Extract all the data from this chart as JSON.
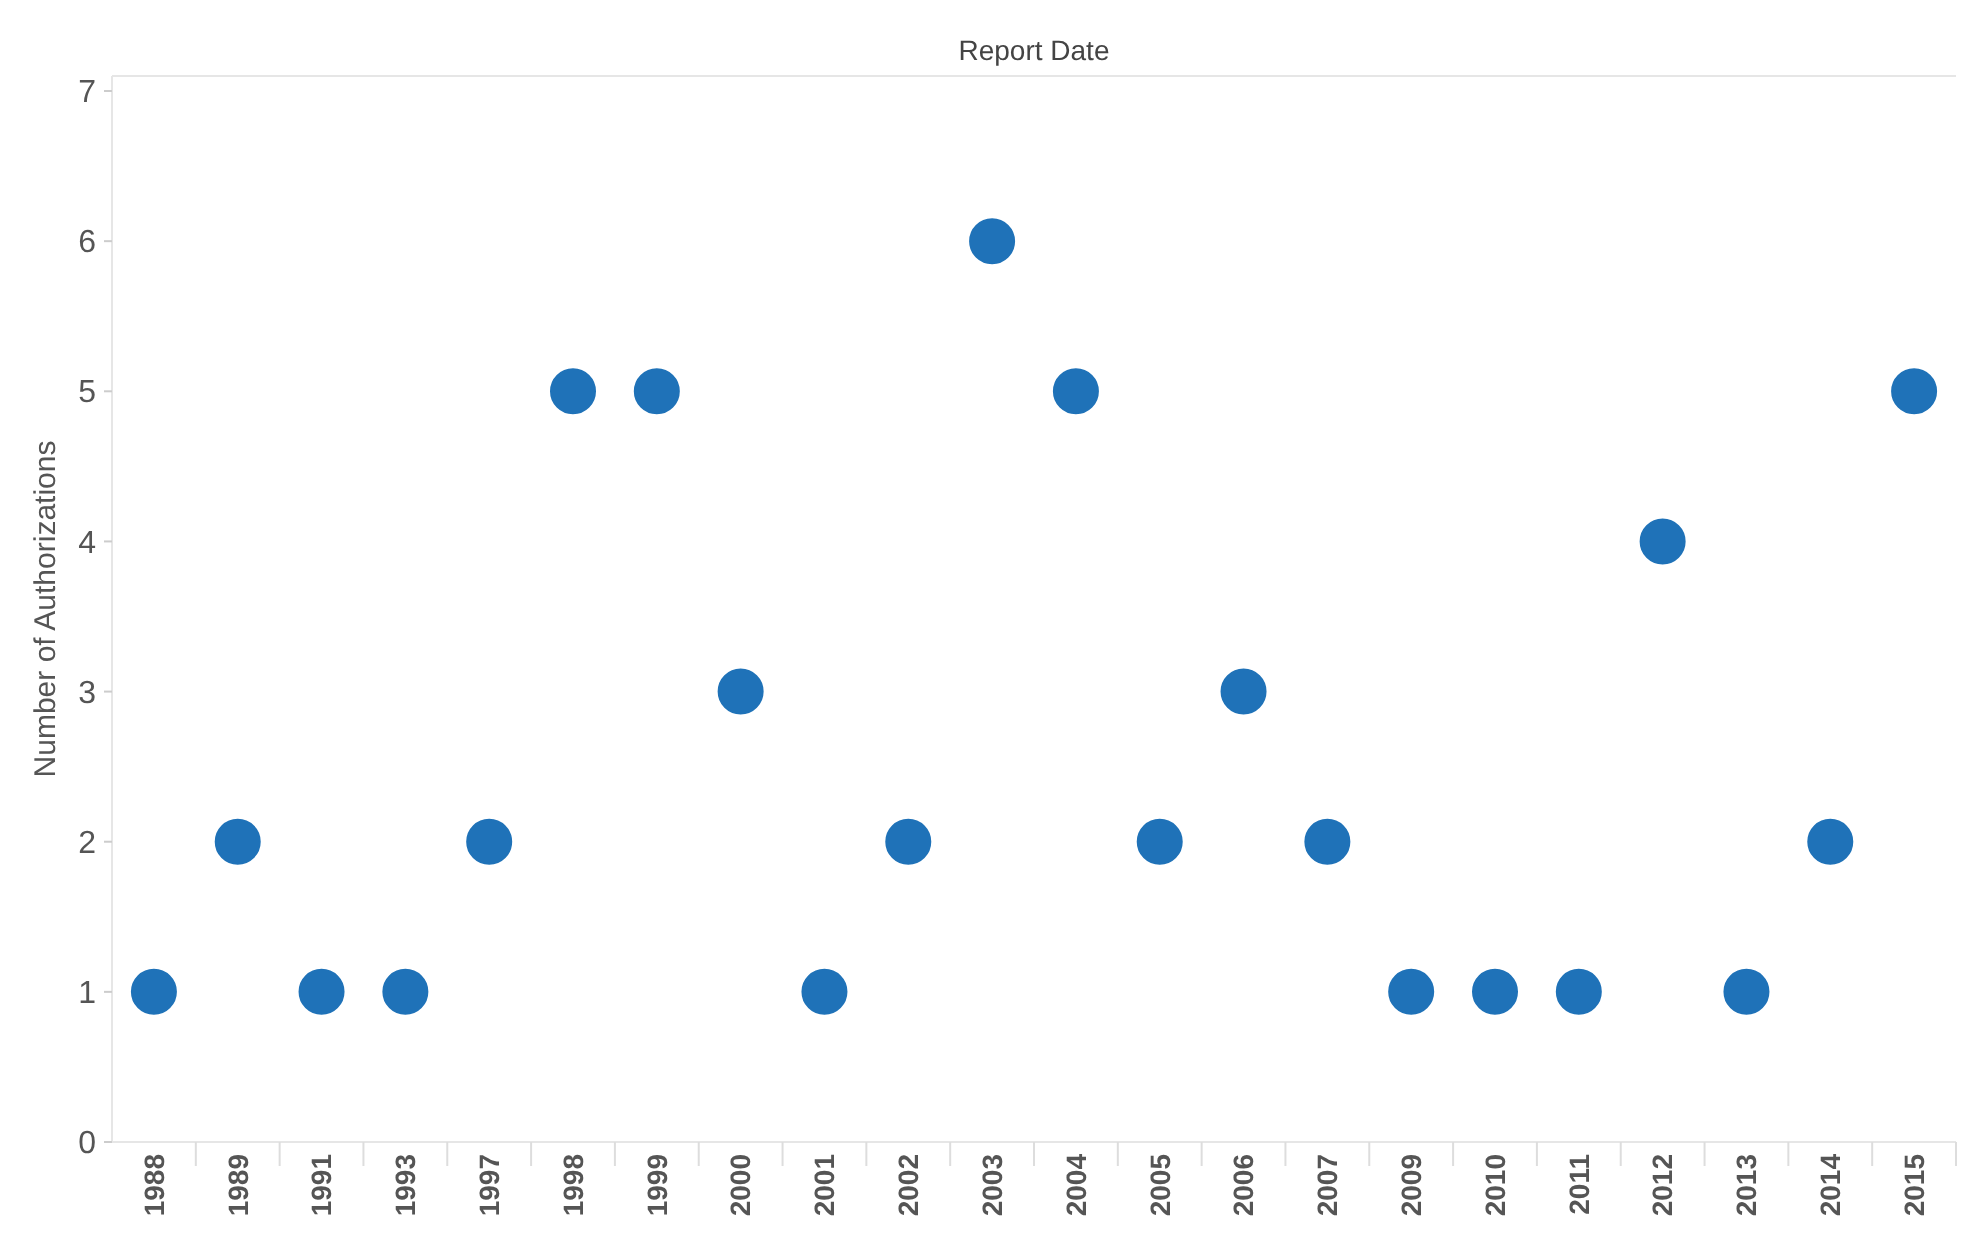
{
  "chart_data": {
    "type": "scatter",
    "xlabel": "Report Date",
    "ylabel": "Number of Authorizations",
    "categories": [
      "1988",
      "1989",
      "1991",
      "1993",
      "1997",
      "1998",
      "1999",
      "2000",
      "2001",
      "2002",
      "2003",
      "2004",
      "2005",
      "2006",
      "2007",
      "2009",
      "2010",
      "2011",
      "2012",
      "2013",
      "2014",
      "2015"
    ],
    "values": [
      1,
      2,
      1,
      1,
      2,
      5,
      5,
      3,
      1,
      2,
      6,
      5,
      2,
      3,
      2,
      1,
      1,
      1,
      4,
      1,
      2,
      5
    ],
    "color": "#1f72b8",
    "ylim": [
      0,
      7.1
    ],
    "yticks": [
      0,
      1,
      2,
      3,
      4,
      5,
      6,
      7
    ],
    "grid": false,
    "marker": "circle"
  }
}
